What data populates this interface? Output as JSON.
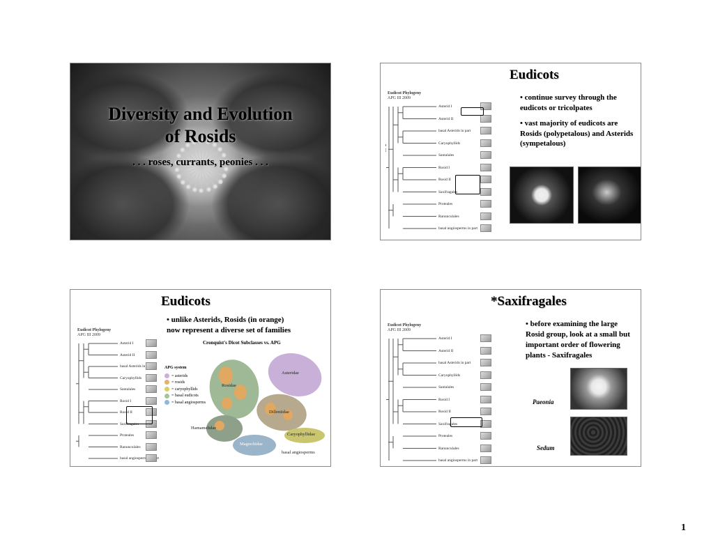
{
  "page_number": "1",
  "colors": {
    "bg": "#ffffff",
    "border": "#888888",
    "text": "#000000",
    "shadow": "#cccccc"
  },
  "slides": {
    "s1": {
      "title_line1": "Diversity and Evolution",
      "title_line2": "of Rosids",
      "subtitle": ". . . roses, currants, peonies . . ."
    },
    "s2": {
      "heading": "Eudicots",
      "bullets": [
        "• continue survey through the eudicots or tricolpates",
        "• vast majority of eudicots are Rosids (polypetalous) and Asterids (sympetalous)"
      ],
      "core_label1": "Core",
      "core_label2": "Eudicots",
      "tree_title1": "Eudicot Phylogeny",
      "tree_title2": "APG III 2009",
      "leaves": [
        "Asterid I",
        "Asterid II",
        "basal Asterids in part",
        "Caryophyllids",
        "Santalales",
        "Rosid I",
        "Rosid II",
        "Saxifragales",
        "Proteales",
        "Ranunculales",
        "basal angiosperms in part"
      ]
    },
    "s3": {
      "heading": "Eudicots",
      "bullet_l1": "• unlike Asterids, Rosids (in orange)",
      "bullet_l2": "now represent a diverse set of families",
      "venn_title": "Cronquist's Dicot Subclasses vs. APG",
      "apg_title": "APG system",
      "apg_items": [
        {
          "label": "= asterids",
          "color": "#c8b0d8"
        },
        {
          "label": "= rosids",
          "color": "#e8b070"
        },
        {
          "label": "= caryophyllids",
          "color": "#d8d060"
        },
        {
          "label": "= basal eudicots",
          "color": "#a0c890"
        },
        {
          "label": "= basal angiosperms",
          "color": "#90b8d8"
        }
      ],
      "blobs": {
        "asteridae": "Asteridae",
        "rosidae": "Rosidae",
        "dilleniidae": "Dilleniidae",
        "hamamelidae": "Hamamelidae",
        "magnoliidae": "Magnoliidae",
        "caryo": "Caryophyllidae",
        "basal": "basal angiosperms"
      },
      "tree_title1": "Eudicot Phylogeny",
      "tree_title2": "APG III 2009",
      "leaves": [
        "Asterid I",
        "Asterid II",
        "basal Asterids in part",
        "Caryophyllids",
        "Santalales",
        "Rosid I",
        "Rosid II",
        "Saxifragales",
        "Proteales",
        "Ranunculales",
        "basal angiosperms in part"
      ]
    },
    "s4": {
      "heading": "*Saxifragales",
      "bullets": [
        "• before examining the large Rosid group, look at a small but important order of flowering plants - Saxifragales"
      ],
      "label_paeonia": "Paeonia",
      "label_sedum": "Sedum",
      "tree_title1": "Eudicot Phylogeny",
      "tree_title2": "APG III 2009",
      "leaves": [
        "Asterid I",
        "Asterid II",
        "basal Asterids in part",
        "Caryophyllids",
        "Santalales",
        "Rosid I",
        "Rosid II",
        "Saxifragales",
        "Proteales",
        "Ranunculales",
        "basal angiosperms in part"
      ]
    }
  }
}
